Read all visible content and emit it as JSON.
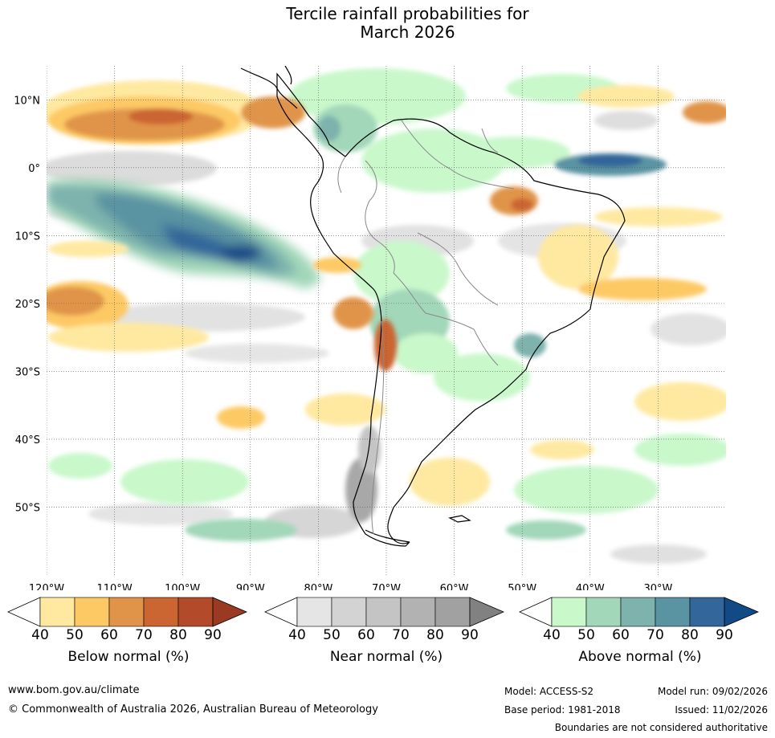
{
  "title": {
    "line1": "Tercile rainfall probabilities for",
    "line2": "March 2026"
  },
  "map": {
    "lat_labels": [
      "10°N",
      "0°",
      "10°S",
      "20°S",
      "30°S",
      "40°S",
      "50°S"
    ],
    "lat_values": [
      10,
      0,
      -10,
      -20,
      -30,
      -40,
      -50
    ],
    "lon_labels": [
      "120°W",
      "110°W",
      "100°W",
      "90°W",
      "80°W",
      "70°W",
      "60°W",
      "50°W",
      "40°W",
      "30°W"
    ],
    "lon_values": [
      -120,
      -110,
      -100,
      -90,
      -80,
      -70,
      -60,
      -50,
      -40,
      -30
    ],
    "extent": {
      "lon_min": -120,
      "lon_max": -20,
      "lat_min": -60,
      "lat_max": 15
    }
  },
  "colorbars": [
    {
      "label": "Below normal (%)",
      "ticks": [
        "40",
        "50",
        "60",
        "70",
        "80",
        "90"
      ],
      "colors": [
        "#ffffff",
        "#ffe8a0",
        "#fdc965",
        "#e0944a",
        "#cb6531",
        "#b34b2a",
        "#9a3a22"
      ]
    },
    {
      "label": "Near normal (%)",
      "ticks": [
        "40",
        "50",
        "60",
        "70",
        "80",
        "90"
      ],
      "colors": [
        "#ffffff",
        "#e5e5e5",
        "#d3d3d3",
        "#c4c4c4",
        "#b2b2b2",
        "#a1a1a1",
        "#818181"
      ]
    },
    {
      "label": "Above normal (%)",
      "ticks": [
        "40",
        "50",
        "60",
        "70",
        "80",
        "90"
      ],
      "colors": [
        "#ffffff",
        "#c9f8cb",
        "#a2d7b9",
        "#7db2ad",
        "#5a93a2",
        "#33669a",
        "#124a86"
      ]
    }
  ],
  "footer": {
    "website": "www.bom.gov.au/climate",
    "copyright": "© Commonwealth of Australia 2026, Australian Bureau of Meteorology",
    "model": "Model: ACCESS-S2",
    "base_period": "Base period: 1981-2018",
    "model_run": "Model run: 09/02/2026",
    "issued": "Issued: 11/02/2026",
    "disclaimer": "Boundaries are not considered authoritative"
  }
}
